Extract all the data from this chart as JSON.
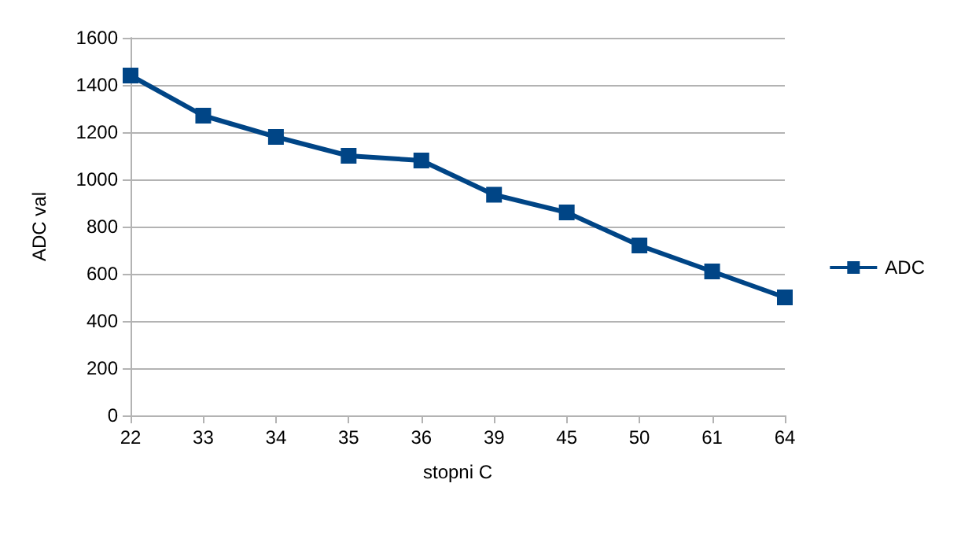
{
  "chart_data": {
    "type": "line",
    "xlabel": "stopni C",
    "ylabel": "ADC val",
    "categories": [
      "22",
      "33",
      "34",
      "35",
      "36",
      "39",
      "45",
      "50",
      "61",
      "64"
    ],
    "series": [
      {
        "name": "ADC",
        "color": "#004586",
        "values": [
          1440,
          1270,
          1180,
          1100,
          1080,
          935,
          860,
          720,
          610,
          500
        ]
      }
    ],
    "ylim": [
      0,
      1600
    ],
    "yticks": [
      0,
      200,
      400,
      600,
      800,
      1000,
      1200,
      1400,
      1600
    ],
    "grid": "y",
    "legend": "right",
    "marker": "square",
    "line_style": "solid"
  }
}
